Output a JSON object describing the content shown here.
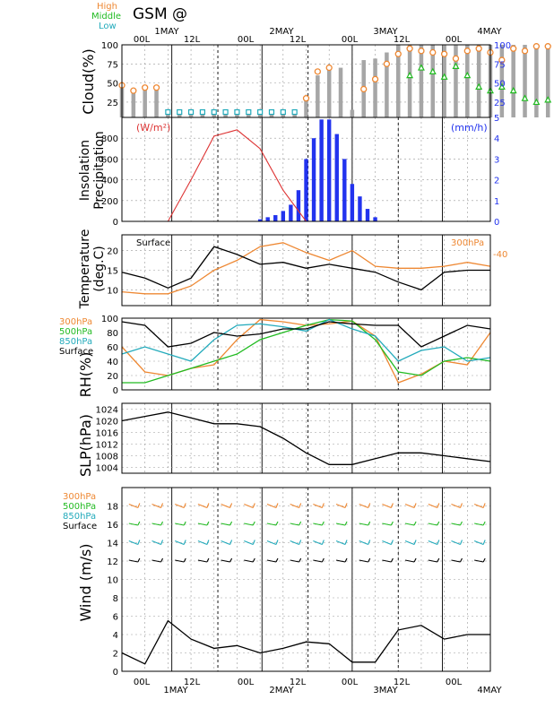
{
  "header": {
    "title": "GSM  @",
    "top_dates": [
      "1MAY",
      "2MAY",
      "3MAY",
      "4MAY"
    ],
    "top_hours": [
      "00L",
      "12L",
      "00L",
      "12L",
      "00L",
      "12L",
      "00L"
    ],
    "bottom_dates": [
      "1MAY",
      "2MAY",
      "3MAY",
      "4MAY"
    ],
    "bottom_hours": [
      "00L",
      "12L",
      "00L",
      "12L",
      "00L",
      "12L",
      "00L"
    ]
  },
  "colors": {
    "orange": "#ee8833",
    "green": "#22bb22",
    "cyan": "#22aabb",
    "blue": "#2233ee",
    "red": "#dd3333",
    "black": "#000000",
    "gray": "#a6a6a6"
  },
  "chart_data": [
    {
      "type": "bar",
      "name": "cloud",
      "ylabel": "Cloud(%)",
      "legend": [
        "High",
        "Middle",
        "Low"
      ],
      "ylim": [
        5,
        100
      ],
      "yticks": [
        25,
        50,
        75,
        100
      ],
      "right_yticks": [
        5,
        25,
        50,
        75,
        100
      ],
      "x": [
        0,
        3,
        6,
        9,
        12,
        15,
        18,
        21,
        24,
        27,
        30,
        33,
        36,
        39,
        42,
        45,
        48,
        51,
        54,
        57,
        60,
        63,
        66,
        69,
        72,
        75,
        78,
        81,
        84,
        87,
        90,
        93,
        96,
        99,
        102,
        105,
        108,
        111,
        114,
        117,
        120,
        123,
        126,
        129,
        132,
        135,
        138,
        141,
        144,
        147,
        150,
        153,
        156,
        159,
        162,
        165,
        168,
        171,
        174,
        177,
        180,
        183,
        186,
        189,
        192,
        195,
        198,
        201,
        204,
        207,
        210,
        213,
        216,
        219,
        222,
        225,
        228,
        231,
        234,
        237,
        240,
        243,
        246,
        249,
        252,
        255,
        258,
        261,
        264,
        267,
        270
      ],
      "series": [
        {
          "name": "Total",
          "values": [
            47,
            40,
            44,
            44,
            12,
            12,
            12,
            12,
            12,
            12,
            12,
            12,
            12,
            12,
            12,
            12,
            30,
            60,
            70,
            70,
            15,
            80,
            82,
            90,
            100,
            100,
            100,
            100,
            100,
            100,
            100,
            100,
            100,
            100,
            100,
            100,
            100,
            95,
            92,
            95,
            88,
            100,
            98,
            95,
            90,
            80,
            70,
            50,
            30,
            10,
            5,
            5,
            5,
            5,
            5,
            5,
            5,
            5,
            5,
            5,
            5,
            5,
            5,
            5,
            5,
            5,
            5,
            5,
            5,
            5,
            5,
            5,
            5,
            5,
            5,
            5,
            5,
            5,
            5,
            5,
            5,
            5,
            5,
            5,
            5,
            5,
            5,
            5,
            5,
            5,
            5
          ]
        },
        {
          "name": "High",
          "values": [
            47,
            40,
            44,
            44,
            null,
            null,
            null,
            null,
            null,
            null,
            null,
            null,
            null,
            null,
            null,
            null,
            30,
            65,
            70,
            null,
            null,
            42,
            55,
            75,
            88,
            95,
            92,
            90,
            88,
            82,
            92,
            95,
            90,
            80,
            95,
            92,
            98,
            98,
            95,
            88,
            null,
            null,
            null,
            null,
            null,
            null,
            null,
            null,
            null,
            null,
            null,
            null,
            null,
            null,
            null,
            null,
            null,
            null,
            null,
            null,
            null,
            null,
            null,
            null,
            null,
            null,
            null,
            null,
            null,
            null,
            null,
            null,
            null,
            null,
            null,
            null,
            null,
            null,
            null,
            null,
            null,
            null,
            null,
            null,
            null,
            null,
            null,
            null,
            null,
            null,
            null
          ]
        },
        {
          "name": "Middle",
          "values": [
            null,
            null,
            null,
            null,
            null,
            null,
            null,
            null,
            null,
            null,
            null,
            null,
            null,
            null,
            null,
            null,
            null,
            null,
            null,
            null,
            null,
            null,
            null,
            null,
            null,
            60,
            70,
            65,
            58,
            72,
            60,
            45,
            40,
            45,
            40,
            30,
            25,
            28,
            35,
            25,
            null,
            null,
            null,
            null,
            null,
            null,
            null,
            null,
            null,
            null,
            null,
            null,
            null,
            null,
            null,
            null,
            null,
            null,
            null,
            null,
            null,
            null,
            null,
            null,
            null,
            null,
            null,
            null,
            null,
            null,
            null,
            null,
            null,
            null,
            null,
            null,
            null,
            null,
            null,
            null,
            null,
            null,
            null,
            null,
            null,
            null,
            null,
            null,
            null,
            null,
            null
          ]
        },
        {
          "name": "Low",
          "values": [
            null,
            null,
            null,
            null,
            12,
            12,
            12,
            12,
            12,
            12,
            12,
            12,
            12,
            12,
            12,
            12,
            null,
            null,
            null,
            null,
            null,
            null,
            null,
            null,
            null,
            null,
            null,
            null,
            null,
            null,
            null,
            null,
            null,
            null,
            null,
            null,
            null,
            null,
            null,
            null,
            null,
            null,
            null,
            null,
            null,
            null,
            null,
            null,
            null,
            null,
            null,
            null,
            null,
            null,
            null,
            null,
            null,
            null,
            null,
            null,
            null,
            null,
            null,
            null,
            null,
            null,
            null,
            null,
            null,
            null,
            null,
            null,
            null,
            null,
            null,
            null,
            null,
            null,
            null,
            null,
            null,
            null,
            null,
            null,
            null,
            null,
            null,
            null,
            null,
            null,
            null
          ]
        }
      ]
    },
    {
      "type": "line",
      "name": "insolation-precip",
      "ylabel": "Insolation\nPrecipitation",
      "left_unit": "(W/m²)",
      "right_unit": "(mm/h)",
      "ylim": [
        0,
        1000
      ],
      "yticks": [
        0,
        200,
        400,
        600,
        800
      ],
      "right_yticks": [
        0,
        1,
        2,
        3,
        4
      ],
      "insolation_x": [
        0,
        12,
        18,
        24,
        30,
        36,
        42,
        48,
        54,
        60,
        66,
        72,
        78,
        84,
        90,
        96
      ],
      "insolation": [
        0,
        0,
        400,
        820,
        880,
        700,
        300,
        0,
        0,
        0,
        0,
        0,
        0,
        0,
        0,
        0
      ],
      "precip_x": [
        36,
        38,
        40,
        42,
        44,
        46,
        48,
        50,
        52,
        54,
        56,
        58,
        60,
        62,
        64,
        66
      ],
      "precip": [
        0.1,
        0.2,
        0.3,
        0.5,
        0.8,
        1.5,
        3.0,
        4.0,
        4.9,
        4.9,
        4.2,
        3.0,
        1.8,
        1.2,
        0.6,
        0.2
      ]
    },
    {
      "type": "line",
      "name": "temperature",
      "ylabel": "Temperature\n(deg.C)",
      "ylim": [
        6,
        24
      ],
      "yticks": [
        10,
        15,
        20
      ],
      "annotations": [
        "Surface",
        "300hPa",
        "-40"
      ],
      "x": [
        0,
        6,
        12,
        18,
        24,
        30,
        36,
        42,
        48,
        54,
        60,
        66,
        72,
        78,
        84,
        90,
        96
      ],
      "series": [
        {
          "name": "Surface",
          "values": [
            14.5,
            13,
            10.5,
            13,
            21,
            19,
            16.5,
            17,
            15.5,
            16.5,
            15.5,
            14.5,
            12,
            10,
            14.5,
            15,
            15
          ]
        },
        {
          "name": "300hPa",
          "values": [
            9.5,
            9,
            9,
            11,
            15,
            17.5,
            21,
            22,
            19.5,
            17.5,
            20,
            16,
            15.5,
            15.5,
            16,
            17,
            16
          ]
        }
      ]
    },
    {
      "type": "line",
      "name": "rh",
      "ylabel": "RH(%)",
      "ylim": [
        0,
        100
      ],
      "yticks": [
        0,
        20,
        40,
        60,
        80,
        100
      ],
      "legend": [
        "300hPa",
        "500hPa",
        "850hPa",
        "Surface"
      ],
      "x": [
        0,
        6,
        12,
        18,
        24,
        30,
        36,
        42,
        48,
        54,
        60,
        66,
        72,
        78,
        84,
        90,
        96
      ],
      "series": [
        {
          "name": "300hPa",
          "values": [
            60,
            25,
            20,
            30,
            35,
            70,
            98,
            95,
            90,
            92,
            96,
            75,
            10,
            22,
            40,
            35,
            80
          ]
        },
        {
          "name": "500hPa",
          "values": [
            10,
            10,
            20,
            30,
            40,
            50,
            70,
            80,
            90,
            98,
            96,
            70,
            25,
            20,
            40,
            45,
            40
          ]
        },
        {
          "name": "850hPa",
          "values": [
            50,
            60,
            50,
            40,
            70,
            90,
            92,
            88,
            82,
            98,
            85,
            75,
            40,
            55,
            60,
            40,
            45
          ]
        },
        {
          "name": "Surface",
          "values": [
            95,
            90,
            60,
            65,
            80,
            75,
            78,
            85,
            85,
            95,
            92,
            90,
            90,
            60,
            75,
            90,
            85
          ]
        }
      ]
    },
    {
      "type": "line",
      "name": "slp",
      "ylabel": "SLP(hPa)",
      "ylim": [
        1002,
        1026
      ],
      "yticks": [
        1004,
        1008,
        1012,
        1016,
        1020,
        1024
      ],
      "x": [
        0,
        6,
        12,
        18,
        24,
        30,
        36,
        42,
        48,
        54,
        60,
        66,
        72,
        78,
        84,
        90,
        96
      ],
      "series": [
        {
          "name": "SLP",
          "values": [
            1020,
            1021.5,
            1023,
            1021,
            1019,
            1019,
            1018,
            1014,
            1009,
            1005,
            1005,
            1007,
            1009,
            1009,
            1008,
            1007,
            1006
          ]
        }
      ]
    },
    {
      "type": "line",
      "name": "wind",
      "ylabel": "Wind (m/s)",
      "ylim": [
        0,
        20
      ],
      "yticks": [
        0,
        2,
        4,
        6,
        8,
        10,
        12,
        14,
        16,
        18
      ],
      "legend": [
        "300hPa",
        "500hPa",
        "850hPa",
        "Surface"
      ],
      "x": [
        0,
        6,
        12,
        18,
        24,
        30,
        36,
        42,
        48,
        54,
        60,
        66,
        72,
        78,
        84,
        90,
        96
      ],
      "series": [
        {
          "name": "Surface",
          "values": [
            2,
            0.8,
            5.5,
            3.5,
            2.5,
            2.8,
            2,
            2.5,
            3.2,
            3,
            1,
            1,
            4.5,
            5,
            3.5,
            4,
            4
          ]
        }
      ],
      "barbs": [
        {
          "level": "300hPa",
          "y": 18
        },
        {
          "level": "500hPa",
          "y": 16
        },
        {
          "level": "850hPa",
          "y": 14
        },
        {
          "level": "Surface",
          "y": 12
        }
      ]
    }
  ]
}
